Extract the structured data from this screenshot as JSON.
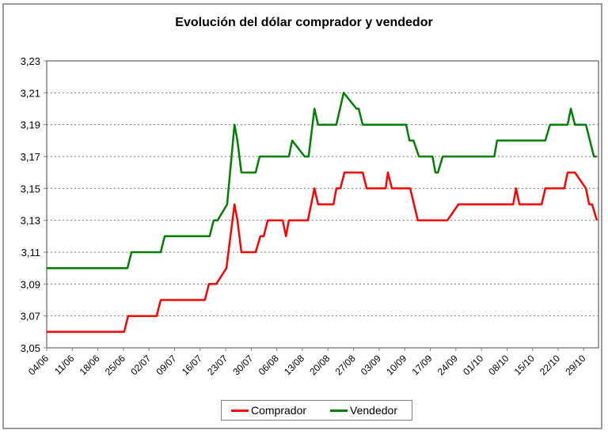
{
  "chart_data": {
    "type": "line",
    "title": "Evolución del dólar comprador y vendedor",
    "xlabel": "",
    "ylabel": "",
    "ylim": [
      3.05,
      3.23
    ],
    "yticks": [
      "3,05",
      "3,07",
      "3,09",
      "3,11",
      "3,13",
      "3,15",
      "3,17",
      "3,19",
      "3,21",
      "3,23"
    ],
    "ytick_values": [
      3.05,
      3.07,
      3.09,
      3.11,
      3.13,
      3.15,
      3.17,
      3.19,
      3.21,
      3.23
    ],
    "categories": [
      "04/06",
      "11/06",
      "18/06",
      "25/06",
      "02/07",
      "09/07",
      "16/07",
      "23/07",
      "30/07",
      "06/08",
      "13/08",
      "20/08",
      "27/08",
      "03/09",
      "10/09",
      "17/09",
      "24/09",
      "01/10",
      "08/10",
      "15/10",
      "22/10",
      "29/10"
    ],
    "x_unit": "days since 04/06",
    "grid": "horizontal dotted",
    "legend_position": "bottom",
    "series": [
      {
        "name": "Comprador",
        "color": "#ff0000",
        "points": [
          [
            0,
            3.06
          ],
          [
            21.2,
            3.06
          ],
          [
            22.3,
            3.07
          ],
          [
            30.1,
            3.07
          ],
          [
            31.2,
            3.08
          ],
          [
            43.3,
            3.08
          ],
          [
            44.4,
            3.09
          ],
          [
            46.4,
            3.09
          ],
          [
            49.2,
            3.1
          ],
          [
            51.4,
            3.14
          ],
          [
            52.2,
            3.13
          ],
          [
            53.3,
            3.11
          ],
          [
            57.2,
            3.11
          ],
          [
            58.5,
            3.12
          ],
          [
            59.4,
            3.12
          ],
          [
            60.5,
            3.13
          ],
          [
            64.6,
            3.13
          ],
          [
            65.5,
            3.12
          ],
          [
            66.3,
            3.13
          ],
          [
            71.5,
            3.13
          ],
          [
            73.3,
            3.15
          ],
          [
            74.3,
            3.14
          ],
          [
            78.5,
            3.14
          ],
          [
            79.3,
            3.15
          ],
          [
            80.4,
            3.15
          ],
          [
            81.5,
            3.16
          ],
          [
            86.5,
            3.16
          ],
          [
            87.6,
            3.15
          ],
          [
            92.8,
            3.15
          ],
          [
            93.4,
            3.16
          ],
          [
            94.5,
            3.15
          ],
          [
            99.5,
            3.15
          ],
          [
            101.6,
            3.13
          ],
          [
            109.7,
            3.13
          ],
          [
            112.7,
            3.14
          ],
          [
            127.7,
            3.14
          ],
          [
            128.5,
            3.15
          ],
          [
            129.4,
            3.14
          ],
          [
            135.5,
            3.14
          ],
          [
            136.5,
            3.15
          ],
          [
            141.7,
            3.15
          ],
          [
            142.6,
            3.16
          ],
          [
            144.6,
            3.16
          ],
          [
            147.6,
            3.15
          ],
          [
            148.5,
            3.14
          ],
          [
            149.3,
            3.14
          ],
          [
            150.6,
            3.13
          ]
        ]
      },
      {
        "name": "Vendedor",
        "color": "#008000",
        "points": [
          [
            0,
            3.1
          ],
          [
            22.1,
            3.1
          ],
          [
            23.2,
            3.11
          ],
          [
            31.2,
            3.11
          ],
          [
            32.3,
            3.12
          ],
          [
            44.6,
            3.12
          ],
          [
            45.7,
            3.13
          ],
          [
            46.8,
            3.13
          ],
          [
            49.4,
            3.14
          ],
          [
            51.4,
            3.19
          ],
          [
            52.2,
            3.18
          ],
          [
            53.3,
            3.16
          ],
          [
            57.2,
            3.16
          ],
          [
            58.3,
            3.17
          ],
          [
            66.3,
            3.17
          ],
          [
            67.2,
            3.18
          ],
          [
            70.6,
            3.17
          ],
          [
            71.7,
            3.17
          ],
          [
            73.3,
            3.2
          ],
          [
            74.3,
            3.19
          ],
          [
            79.3,
            3.19
          ],
          [
            81.3,
            3.21
          ],
          [
            84.8,
            3.2
          ],
          [
            85.4,
            3.2
          ],
          [
            86.5,
            3.19
          ],
          [
            98.4,
            3.19
          ],
          [
            99.3,
            3.18
          ],
          [
            100.4,
            3.18
          ],
          [
            101.9,
            3.17
          ],
          [
            105.6,
            3.17
          ],
          [
            106.4,
            3.16
          ],
          [
            107.1,
            3.16
          ],
          [
            108.4,
            3.17
          ],
          [
            122.5,
            3.17
          ],
          [
            123.3,
            3.18
          ],
          [
            136.5,
            3.18
          ],
          [
            137.8,
            3.19
          ],
          [
            142.6,
            3.19
          ],
          [
            143.5,
            3.2
          ],
          [
            144.6,
            3.19
          ],
          [
            147.6,
            3.19
          ],
          [
            149.8,
            3.17
          ],
          [
            150.6,
            3.17
          ]
        ]
      }
    ]
  },
  "legend": {
    "items": [
      {
        "label": "Comprador",
        "color": "#ff0000"
      },
      {
        "label": "Vendedor",
        "color": "#008000"
      }
    ]
  }
}
